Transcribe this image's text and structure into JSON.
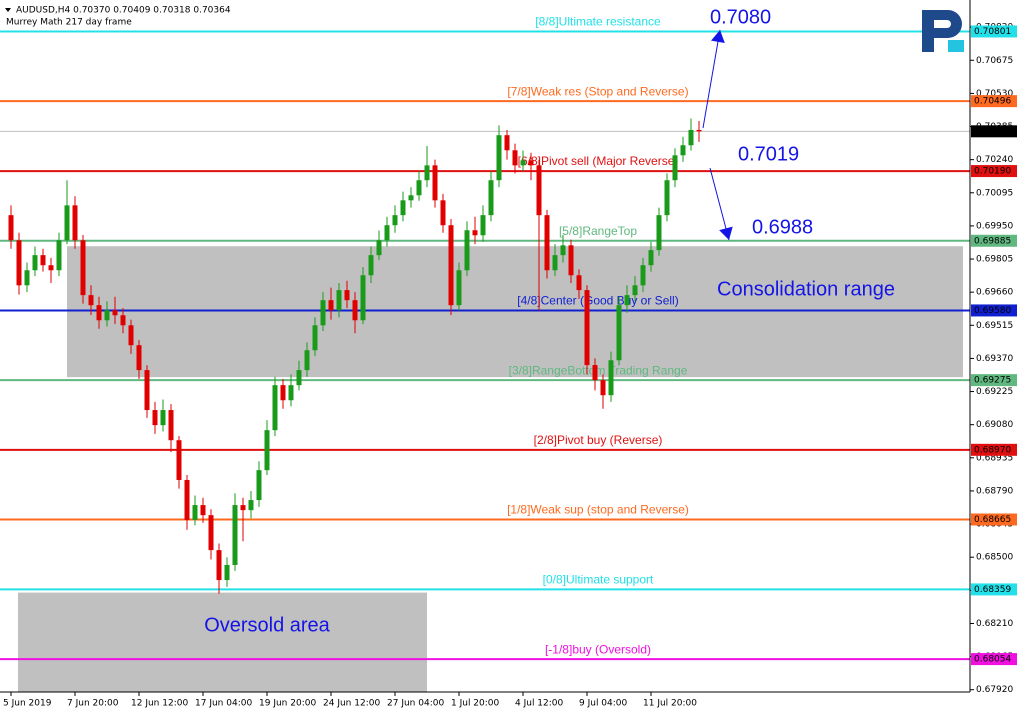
{
  "chart_data": {
    "type": "candlestick",
    "title": "AUDUSD,H4  0.70370 0.70409 0.70318 0.70364",
    "subtitle": "Murrey Math 217 day frame",
    "up_color": "#1a9a1a",
    "down_color": "#e00000",
    "candles": {
      "open": [
        0.69997,
        0.69887,
        0.6969,
        0.69756,
        0.69822,
        0.69778,
        0.69756,
        0.69887,
        0.7004,
        0.69887,
        0.69647,
        0.69603,
        0.69537,
        0.69581,
        0.69559,
        0.69515,
        0.69428,
        0.69319,
        0.69144,
        0.69078,
        0.69144,
        0.69012,
        0.68838,
        0.68663,
        0.68728,
        0.68684,
        0.68531,
        0.684,
        0.68466,
        0.68728,
        0.68706,
        0.6875,
        0.68881,
        0.69056,
        0.69253,
        0.69187,
        0.69253,
        0.69319,
        0.69406,
        0.69515,
        0.69625,
        0.69581,
        0.69669,
        0.69625,
        0.69537,
        0.69734,
        0.69822,
        0.69887,
        0.69953,
        0.69997,
        0.70062,
        0.70084,
        0.7015,
        0.70215,
        0.70062,
        0.69953,
        0.69603,
        0.69756,
        0.69931,
        0.69909,
        0.69997,
        0.7015,
        0.70347,
        0.70281,
        0.70215,
        0.70237,
        0.70215,
        0.69997,
        0.69756,
        0.69822,
        0.69865,
        0.69734,
        0.69669,
        0.69341,
        0.69275,
        0.69209,
        0.69362,
        0.69603,
        0.69647,
        0.6969,
        0.69778,
        0.69844,
        0.69997,
        0.7015,
        0.70259,
        0.70303,
        0.7037
      ],
      "high": [
        0.7004,
        0.6992,
        0.6979,
        0.6986,
        0.6985,
        0.6981,
        0.6992,
        0.7015,
        0.7008,
        0.6991,
        0.6969,
        0.6964,
        0.6962,
        0.6964,
        0.6959,
        0.6954,
        0.6945,
        0.6934,
        0.6918,
        0.6919,
        0.6917,
        0.6903,
        0.6886,
        0.6877,
        0.6876,
        0.6871,
        0.6856,
        0.685,
        0.6878,
        0.6876,
        0.6879,
        0.6892,
        0.691,
        0.6929,
        0.6928,
        0.693,
        0.6936,
        0.6944,
        0.6955,
        0.6966,
        0.6968,
        0.697,
        0.6971,
        0.6966,
        0.6977,
        0.6986,
        0.6993,
        0.6999,
        0.7004,
        0.701,
        0.7012,
        0.7019,
        0.703,
        0.7024,
        0.7009,
        0.6998,
        0.6979,
        0.6997,
        0.6999,
        0.7004,
        0.7019,
        0.7039,
        0.7037,
        0.7031,
        0.7028,
        0.7027,
        0.7024,
        0.7002,
        0.6987,
        0.6991,
        0.6989,
        0.6976,
        0.6969,
        0.6937,
        0.693,
        0.694,
        0.6964,
        0.6969,
        0.6973,
        0.6981,
        0.6988,
        0.7003,
        0.7018,
        0.7029,
        0.7034,
        0.7042,
        0.70409
      ],
      "low": [
        0.6985,
        0.6965,
        0.6966,
        0.6973,
        0.6975,
        0.697,
        0.6973,
        0.6987,
        0.6985,
        0.6961,
        0.6956,
        0.695,
        0.6951,
        0.6952,
        0.6948,
        0.6939,
        0.6928,
        0.6911,
        0.6904,
        0.6905,
        0.6896,
        0.688,
        0.6862,
        0.6864,
        0.6865,
        0.6849,
        0.6834,
        0.6837,
        0.6844,
        0.6857,
        0.6867,
        0.6872,
        0.6886,
        0.6903,
        0.6915,
        0.6916,
        0.6923,
        0.6929,
        0.6938,
        0.6949,
        0.6954,
        0.6955,
        0.6959,
        0.6948,
        0.6952,
        0.697,
        0.698,
        0.6986,
        0.6992,
        0.6997,
        0.7003,
        0.7006,
        0.7012,
        0.7003,
        0.6992,
        0.6956,
        0.6958,
        0.6973,
        0.6987,
        0.6988,
        0.6997,
        0.7012,
        0.7024,
        0.7018,
        0.7019,
        0.7015,
        0.6958,
        0.6972,
        0.6973,
        0.6979,
        0.697,
        0.6963,
        0.693,
        0.6923,
        0.6915,
        0.6918,
        0.6934,
        0.6957,
        0.6962,
        0.6966,
        0.6975,
        0.6982,
        0.6997,
        0.7012,
        0.7023,
        0.7028,
        0.70318
      ],
      "close": [
        0.69887,
        0.6969,
        0.69756,
        0.69822,
        0.69778,
        0.69756,
        0.69887,
        0.7004,
        0.69887,
        0.69647,
        0.69603,
        0.69537,
        0.69581,
        0.69559,
        0.69515,
        0.69428,
        0.69319,
        0.69144,
        0.69078,
        0.69144,
        0.69012,
        0.68838,
        0.68663,
        0.68728,
        0.68684,
        0.68531,
        0.684,
        0.68466,
        0.68728,
        0.68706,
        0.6875,
        0.68881,
        0.69056,
        0.69253,
        0.69187,
        0.69253,
        0.69319,
        0.69406,
        0.69515,
        0.69625,
        0.69581,
        0.69669,
        0.69625,
        0.69537,
        0.69734,
        0.69822,
        0.69887,
        0.69953,
        0.69997,
        0.70062,
        0.70084,
        0.7015,
        0.70215,
        0.70062,
        0.69953,
        0.69603,
        0.69756,
        0.69931,
        0.69909,
        0.69997,
        0.7015,
        0.70347,
        0.70281,
        0.70215,
        0.70237,
        0.70215,
        0.69997,
        0.69756,
        0.69822,
        0.69865,
        0.69734,
        0.69669,
        0.69341,
        0.69275,
        0.69209,
        0.69362,
        0.69603,
        0.69647,
        0.6969,
        0.69778,
        0.69844,
        0.69997,
        0.7015,
        0.70259,
        0.70303,
        0.7037,
        0.70364
      ]
    },
    "xticks": [
      {
        "value": 0,
        "label": "5 Jun 2019"
      },
      {
        "value": 8,
        "label": "7 Jun 20:00"
      },
      {
        "value": 16,
        "label": "12 Jun 12:00"
      },
      {
        "value": 24,
        "label": "17 Jun 04:00"
      },
      {
        "value": 32,
        "label": "19 Jun 20:00"
      },
      {
        "value": 40,
        "label": "24 Jun 12:00"
      },
      {
        "value": 48,
        "label": "27 Jun 04:00"
      },
      {
        "value": 56,
        "label": "1 Jul 20:00"
      },
      {
        "value": 64,
        "label": "4 Jul 12:00"
      },
      {
        "value": 72,
        "label": "9 Jul 04:00"
      },
      {
        "value": 80,
        "label": "11 Jul 20:00"
      }
    ],
    "ylim": [
      0.6791,
      0.7093
    ],
    "yticks": [
      {
        "value": 0.6792,
        "label": "0.67920"
      },
      0.68065,
      {
        "value": 0.6821,
        "label": "0.68210"
      },
      0.68355,
      {
        "value": 0.685,
        "label": "0.68500"
      },
      0.68645,
      {
        "value": 0.6879,
        "label": "0.68790"
      },
      0.68935,
      {
        "value": 0.6908,
        "label": "0.69080"
      },
      0.69225,
      {
        "value": 0.6937,
        "label": "0.69370"
      },
      0.69515,
      {
        "value": 0.6966,
        "label": "0.69660"
      },
      0.69805,
      {
        "value": 0.6995,
        "label": "0.69950"
      },
      0.70095,
      {
        "value": 0.7024,
        "label": "0.70240"
      },
      0.70385,
      {
        "value": 0.7053,
        "label": "0.70530"
      },
      0.70675,
      {
        "value": 0.7082,
        "label": "0.70820"
      }
    ],
    "levels": {
      "names": [
        "[8/8]Ultimate resistance",
        "[7/8]Weak res (Stop and Reverse)",
        "[6/8]Pivot sell (Major Reverse)",
        "[5/8]RangeTop",
        "[4/8]Center (Good Buy or Sell)",
        "[3/8]RangeBottom Trading Range",
        "[2/8]Pivot buy (Reverse)",
        "[1/8]Weak sup (stop and Reverse)",
        "[0/8]Ultimate support",
        "[-1/8]buy (Oversold)"
      ],
      "values": [
        0.70801,
        0.70496,
        0.7019,
        0.69885,
        0.6958,
        0.69275,
        0.6897,
        0.68665,
        0.68359,
        0.68054
      ],
      "value_labels": [
        "0.70801",
        "0.70496",
        "0.70190",
        "0.69885",
        "0.69580",
        "0.69275",
        "0.68970",
        "0.68665",
        "0.68359",
        "0.68054"
      ],
      "colors": [
        "#22e0e8",
        "#ff6a20",
        "#e01010",
        "#60b880",
        "#1020d0",
        "#60b880",
        "#e01010",
        "#ff6a20",
        "#22e0e8",
        "#f010e0"
      ]
    },
    "current_price": 0.70364,
    "zones": [
      {
        "label": "Consolidation range",
        "ylim": [
          0.69288,
          0.69861
        ]
      },
      {
        "label": "Oversold area",
        "ylim": [
          0.6791,
          0.68345
        ]
      }
    ],
    "targets": [
      "0.7080",
      "0.7019",
      "0.6988"
    ]
  }
}
